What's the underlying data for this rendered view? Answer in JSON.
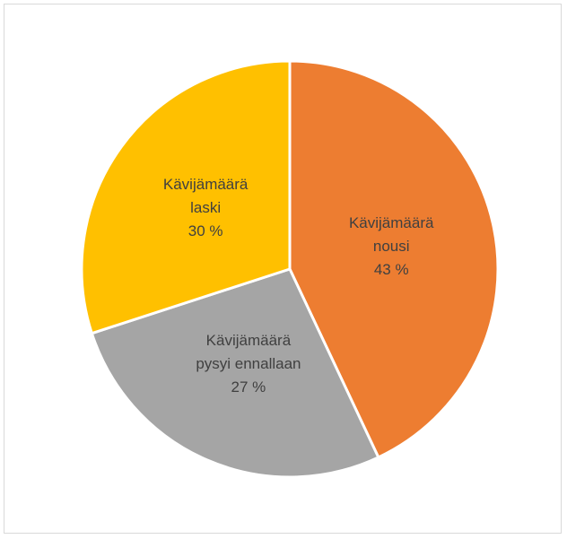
{
  "chart_data": {
    "type": "pie",
    "categories": [
      "Kävijämäärä nousi",
      "Kävijämäärä pysyi ennallaan",
      "Kävijämäärä laski"
    ],
    "values": [
      43,
      27,
      30
    ],
    "value_labels": [
      "43 %",
      "27 %",
      "30 %"
    ],
    "colors": [
      "#ED7D31",
      "#A5A5A5",
      "#FFC000"
    ]
  }
}
